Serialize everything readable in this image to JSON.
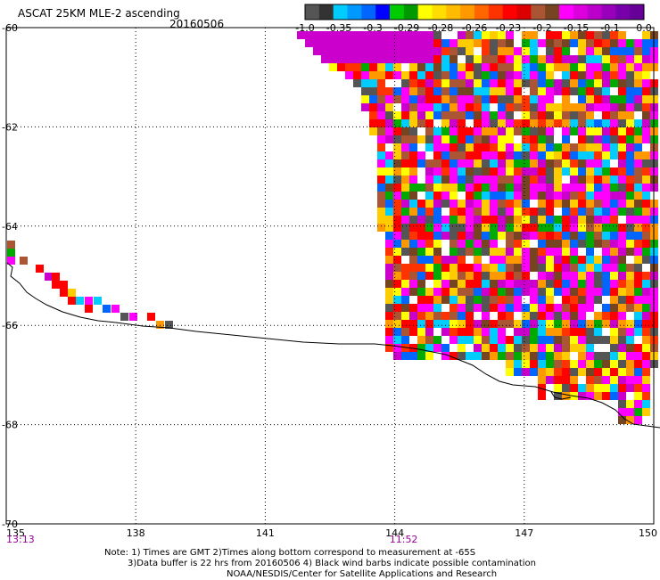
{
  "header": {
    "title": "ASCAT 25KM MLE-2 ascending",
    "date": "20160506"
  },
  "colorbar": {
    "colors": [
      "#555555",
      "#333333",
      "#00ccff",
      "#0099ff",
      "#0066ff",
      "#0000ff",
      "#00cc00",
      "#009900",
      "#ffff00",
      "#ffdd00",
      "#ffbb00",
      "#ff9900",
      "#ff6600",
      "#ff3300",
      "#ff0000",
      "#dd0000",
      "#aa5533",
      "#774422",
      "#ff00ff",
      "#dd00dd",
      "#bb00cc",
      "#9900bb",
      "#7700aa",
      "#660099"
    ],
    "labels": [
      "-1.0",
      "-0.35",
      "-0.3",
      "-0.29",
      "-0.28",
      "-0.26",
      "-0.23",
      "-0.2",
      "-0.15",
      "-0.1",
      "0.0"
    ]
  },
  "map": {
    "lon_ticks": [
      "135",
      "138",
      "141",
      "144",
      "147",
      "150"
    ],
    "lat_ticks": [
      "-60",
      "-62",
      "-64",
      "-66",
      "-68",
      "-70"
    ],
    "time_labels": [
      {
        "text": "13:13",
        "lon": 135
      },
      {
        "text": "11:52",
        "lon": 144
      }
    ],
    "time_color": "#990099",
    "lon_range": [
      135,
      150
    ],
    "lat_range": [
      -70,
      -60
    ]
  },
  "notes": {
    "line1": "Note: 1) Times are GMT 2)Times along bottom correspond to measurement at -65S",
    "line2": "3)Data buffer is 22 hrs from 20160506 4) Black wind barbs indicate possible contamination",
    "line3": "NOAA/NESDIS/Center for Satellite Applications and Research"
  }
}
